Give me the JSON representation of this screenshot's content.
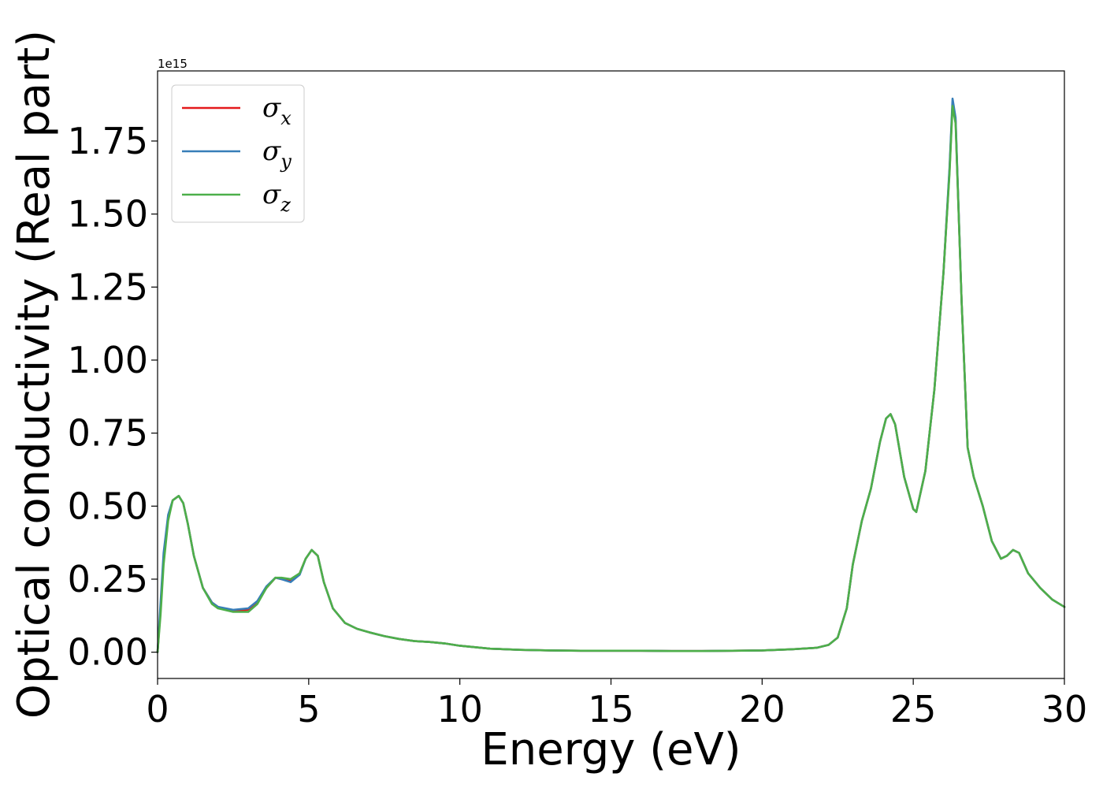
{
  "chart_data": {
    "type": "line",
    "title": "",
    "xlabel": "Energy (eV)",
    "ylabel": "Optical conductivity (Real part)",
    "y_offset_label": "1e15",
    "xlim": [
      0,
      30
    ],
    "ylim": [
      -0.09,
      1.99
    ],
    "x_ticks": [
      0,
      5,
      10,
      15,
      20,
      25,
      30
    ],
    "x_tick_labels": [
      "0",
      "5",
      "10",
      "15",
      "20",
      "25",
      "30"
    ],
    "y_ticks": [
      0.0,
      0.25,
      0.5,
      0.75,
      1.0,
      1.25,
      1.5,
      1.75
    ],
    "y_tick_labels": [
      "0.00",
      "0.25",
      "0.50",
      "0.75",
      "1.00",
      "1.25",
      "1.50",
      "1.75"
    ],
    "grid": false,
    "legend_position": "top-left",
    "x": [
      0,
      0.1,
      0.2,
      0.35,
      0.5,
      0.7,
      0.85,
      1.0,
      1.2,
      1.5,
      1.8,
      2.0,
      2.5,
      3.0,
      3.3,
      3.6,
      3.9,
      4.1,
      4.4,
      4.7,
      4.9,
      5.1,
      5.3,
      5.5,
      5.8,
      6.2,
      6.6,
      7.0,
      7.5,
      8.0,
      8.5,
      9.0,
      9.5,
      10.0,
      11.0,
      12.0,
      13.0,
      14.0,
      15.0,
      16.0,
      17.0,
      18.0,
      19.0,
      20.0,
      21.0,
      21.8,
      22.2,
      22.5,
      22.8,
      23.0,
      23.3,
      23.6,
      23.9,
      24.1,
      24.25,
      24.4,
      24.7,
      25.0,
      25.1,
      25.4,
      25.7,
      26.0,
      26.2,
      26.3,
      26.4,
      26.6,
      26.8,
      27.0,
      27.3,
      27.6,
      27.9,
      28.1,
      28.3,
      28.5,
      28.8,
      29.2,
      29.6,
      30.0
    ],
    "series": [
      {
        "name": "σx",
        "color": "#e41a1c",
        "values": [
          0.0,
          0.15,
          0.32,
          0.46,
          0.52,
          0.535,
          0.51,
          0.44,
          0.33,
          0.22,
          0.17,
          0.155,
          0.14,
          0.145,
          0.17,
          0.22,
          0.255,
          0.25,
          0.245,
          0.27,
          0.32,
          0.35,
          0.33,
          0.24,
          0.15,
          0.1,
          0.08,
          0.068,
          0.055,
          0.045,
          0.038,
          0.035,
          0.03,
          0.022,
          0.012,
          0.008,
          0.006,
          0.005,
          0.005,
          0.005,
          0.004,
          0.004,
          0.005,
          0.006,
          0.01,
          0.015,
          0.025,
          0.05,
          0.15,
          0.3,
          0.45,
          0.56,
          0.72,
          0.8,
          0.815,
          0.78,
          0.6,
          0.49,
          0.48,
          0.62,
          0.9,
          1.3,
          1.65,
          1.88,
          1.82,
          1.2,
          0.7,
          0.6,
          0.5,
          0.38,
          0.32,
          0.33,
          0.35,
          0.34,
          0.27,
          0.22,
          0.18,
          0.155
        ]
      },
      {
        "name": "σy",
        "color": "#377eb8",
        "values": [
          0.0,
          0.17,
          0.34,
          0.47,
          0.52,
          0.535,
          0.51,
          0.44,
          0.33,
          0.22,
          0.17,
          0.155,
          0.145,
          0.15,
          0.175,
          0.225,
          0.255,
          0.25,
          0.24,
          0.265,
          0.32,
          0.35,
          0.33,
          0.24,
          0.15,
          0.1,
          0.08,
          0.068,
          0.055,
          0.045,
          0.038,
          0.035,
          0.03,
          0.022,
          0.012,
          0.008,
          0.006,
          0.005,
          0.005,
          0.005,
          0.004,
          0.004,
          0.005,
          0.006,
          0.01,
          0.015,
          0.025,
          0.05,
          0.15,
          0.3,
          0.45,
          0.56,
          0.72,
          0.8,
          0.815,
          0.78,
          0.6,
          0.49,
          0.48,
          0.62,
          0.9,
          1.3,
          1.66,
          1.895,
          1.83,
          1.2,
          0.7,
          0.6,
          0.5,
          0.38,
          0.32,
          0.33,
          0.35,
          0.34,
          0.27,
          0.22,
          0.18,
          0.155
        ]
      },
      {
        "name": "σz",
        "color": "#4daf4a",
        "values": [
          0.0,
          0.13,
          0.3,
          0.45,
          0.52,
          0.535,
          0.51,
          0.44,
          0.33,
          0.22,
          0.165,
          0.15,
          0.138,
          0.138,
          0.165,
          0.22,
          0.255,
          0.255,
          0.25,
          0.27,
          0.32,
          0.35,
          0.33,
          0.24,
          0.15,
          0.1,
          0.08,
          0.068,
          0.055,
          0.045,
          0.038,
          0.035,
          0.03,
          0.022,
          0.012,
          0.008,
          0.006,
          0.005,
          0.005,
          0.005,
          0.004,
          0.004,
          0.005,
          0.006,
          0.01,
          0.015,
          0.025,
          0.05,
          0.15,
          0.3,
          0.45,
          0.56,
          0.72,
          0.8,
          0.815,
          0.78,
          0.6,
          0.49,
          0.48,
          0.62,
          0.9,
          1.3,
          1.64,
          1.87,
          1.81,
          1.2,
          0.7,
          0.6,
          0.5,
          0.38,
          0.32,
          0.33,
          0.35,
          0.34,
          0.27,
          0.22,
          0.18,
          0.155
        ]
      }
    ],
    "legend": [
      {
        "symbol": "σ",
        "subscript": "x",
        "color": "#e41a1c"
      },
      {
        "symbol": "σ",
        "subscript": "y",
        "color": "#377eb8"
      },
      {
        "symbol": "σ",
        "subscript": "z",
        "color": "#4daf4a"
      }
    ]
  }
}
